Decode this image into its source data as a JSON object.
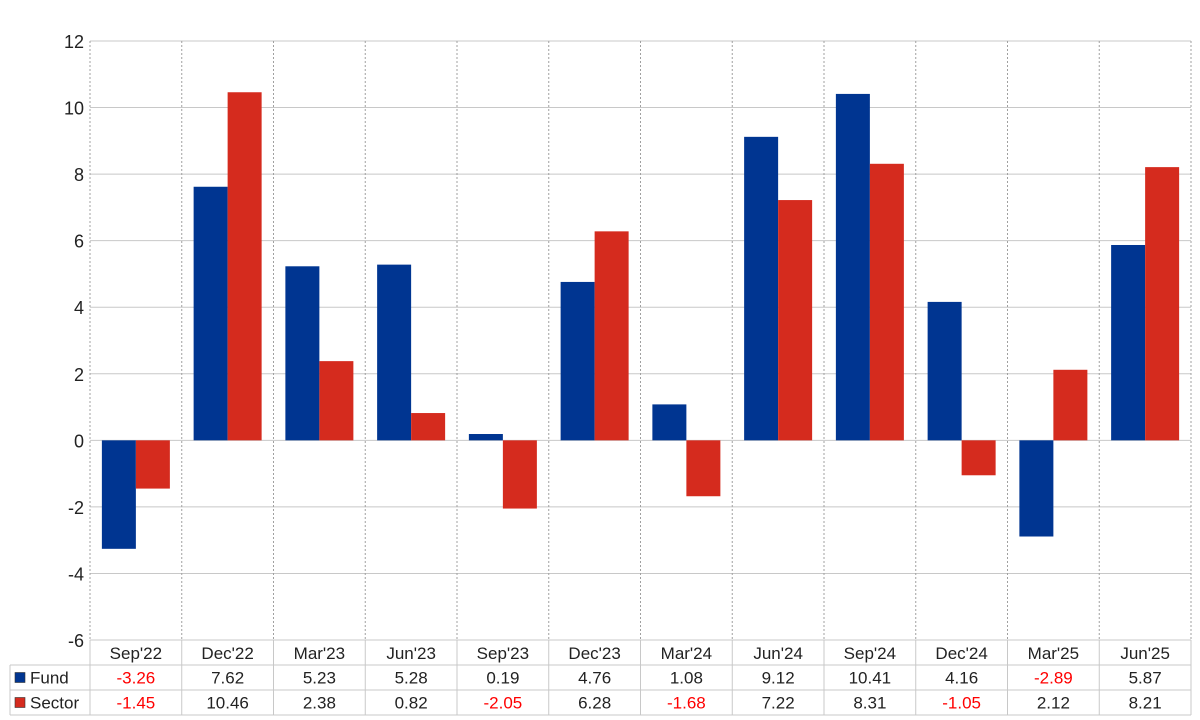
{
  "chart_data": {
    "type": "bar",
    "categories": [
      "Sep'22",
      "Dec'22",
      "Mar'23",
      "Jun'23",
      "Sep'23",
      "Dec'23",
      "Mar'24",
      "Jun'24",
      "Sep'24",
      "Dec'24",
      "Mar'25",
      "Jun'25"
    ],
    "series": [
      {
        "name": "Fund",
        "color": "#003591",
        "values": [
          -3.26,
          7.62,
          5.23,
          5.28,
          0.19,
          4.76,
          1.08,
          9.12,
          10.41,
          4.16,
          -2.89,
          5.87
        ],
        "labels": [
          "-3.26",
          "7.62",
          "5.23",
          "5.28",
          "0.19",
          "4.76",
          "1.08",
          "9.12",
          "10.41",
          "4.16",
          "-2.89",
          "5.87"
        ]
      },
      {
        "name": "Sector",
        "color": "#d52b1e",
        "values": [
          -1.45,
          10.46,
          2.38,
          0.82,
          -2.05,
          6.28,
          -1.68,
          7.22,
          8.31,
          -1.05,
          2.12,
          8.21
        ],
        "labels": [
          "-1.45",
          "10.46",
          "2.38",
          "0.82",
          "-2.05",
          "6.28",
          "-1.68",
          "7.22",
          "8.31",
          "-1.05",
          "2.12",
          "8.21"
        ]
      }
    ],
    "yticks": [
      "12",
      "10",
      "8",
      "6",
      "4",
      "2",
      "0",
      "-2",
      "-4",
      "-6"
    ],
    "ylim": [
      -6,
      12
    ],
    "grid": true,
    "legend": "data table below chart",
    "negative_value_color": "#ff0000"
  }
}
